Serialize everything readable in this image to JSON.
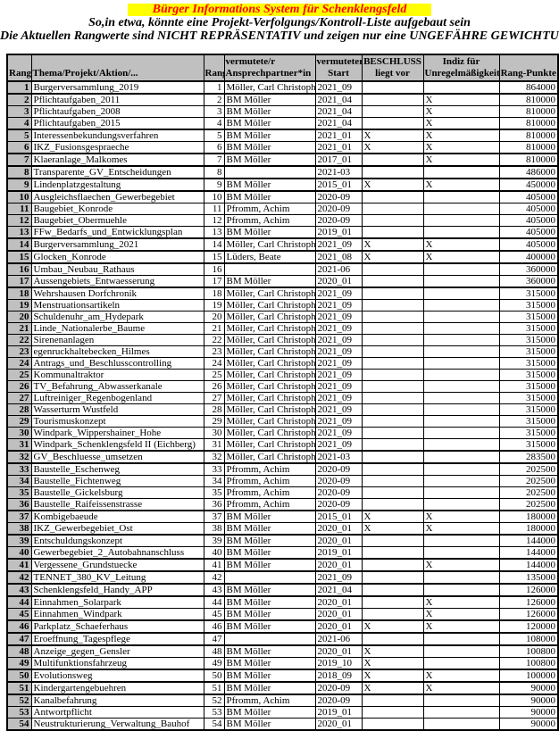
{
  "page": {
    "title": "Bürger Informations System für Schenklengsfeld",
    "subtitle1": "So,in etwa, könnte eine Projekt-Verfolgungs/Kontroll-Liste aufgebaut sein",
    "subtitle2": "Die Aktuellen Rangwerte sind NICHT REPRÄSENTATIV und zeigen nur eine UNGEFÄHRE GEWICHTUNG",
    "colors": {
      "title_highlight_bg": "#ffff00",
      "title_text": "#ff0000",
      "header_bg": "#c0c0c0",
      "border": "#000000"
    }
  },
  "table": {
    "headers": [
      "Rang",
      "Thema/Projekt/Aktion/...",
      "Rang",
      "vermutete/r\nAnsprechpartner*in",
      "vermuteter\nStart",
      "BESCHLUSS\nliegt vor",
      "Indiz für\nUnregelmäßigkeit",
      "Rang-Punkte"
    ],
    "rows": [
      [
        "1",
        "Burgerversammlung_2019",
        "1",
        "Möller, Carl Christoph",
        "2021_09",
        "",
        "",
        "864000"
      ],
      [
        "2",
        "Pflichtaufgaben_2011",
        "2",
        "BM Möller",
        "2021_04",
        "",
        "X",
        "810000"
      ],
      [
        "3",
        "Pflichtaufgaben_2008",
        "3",
        "BM Möller",
        "2021_04",
        "",
        "X",
        "810000"
      ],
      [
        "4",
        "Pflichtaufgaben_2015",
        "4",
        "BM Möller",
        "2021_04",
        "",
        "X",
        "810000"
      ],
      [
        "5",
        "Interessenbekundungsverfahren",
        "5",
        "BM Möller",
        "2021_01",
        "X",
        "X",
        "810000"
      ],
      [
        "6",
        "IKZ_Fusionsgespraeche",
        "6",
        "BM Möller",
        "2021_01",
        "X",
        "X",
        "810000"
      ],
      [
        "7",
        "Klaeranlage_Malkomes",
        "7",
        "BM Möller",
        "2017_01",
        "",
        "X",
        "810000"
      ],
      [
        "8",
        "Transparente_GV_Entscheidungen",
        "8",
        "",
        "2021-03",
        "",
        "",
        "486000"
      ],
      [
        "9",
        "Lindenplatzgestaltung",
        "9",
        "BM Möller",
        "2015_01",
        "X",
        "X",
        "450000"
      ],
      [
        "10",
        "Ausgleichsflaechen_Gewerbegebiet",
        "10",
        "BM Möller",
        "2020-09",
        "",
        "",
        "405000"
      ],
      [
        "11",
        "Baugebiet_Konrode",
        "11",
        "Pfromm, Achim",
        "2020-09",
        "",
        "",
        "405000"
      ],
      [
        "12",
        "Baugebiet_Obermuehle",
        "12",
        "Pfromm, Achim",
        "2020-09",
        "",
        "",
        "405000"
      ],
      [
        "13",
        "FFw_Bedarfs_und_Entwicklungsplan",
        "13",
        "BM Möller",
        "2019_01",
        "",
        "",
        "405000"
      ],
      [
        "14",
        "Burgerversammlung_2021",
        "14",
        "Möller, Carl Christoph",
        "2021_09",
        "X",
        "X",
        "405000"
      ],
      [
        "15",
        "Glocken_Konrode",
        "15",
        "Lüders, Beate",
        "2021_08",
        "X",
        "X",
        "400000"
      ],
      [
        "16",
        "Umbau_Neubau_Rathaus",
        "16",
        "",
        "2021-06",
        "",
        "",
        "360000"
      ],
      [
        "17",
        "Aussengebiets_Entwaesserung",
        "17",
        "BM Möller",
        "2020_01",
        "",
        "",
        "360000"
      ],
      [
        "18",
        "Wehrshausen Dorfchronik",
        "18",
        "Möller, Carl Christoph",
        "2021_09",
        "",
        "",
        "315000"
      ],
      [
        "19",
        "Menstruationsartikeln",
        "19",
        "Möller, Carl Christoph",
        "2021_09",
        "",
        "",
        "315000"
      ],
      [
        "20",
        "Schuldenuhr_am_Hydepark",
        "20",
        "Möller, Carl Christoph",
        "2021_09",
        "",
        "",
        "315000"
      ],
      [
        "21",
        "Linde_Nationalerbe_Baume",
        "21",
        "Möller, Carl Christoph",
        "2021_09",
        "",
        "",
        "315000"
      ],
      [
        "22",
        "Sirenenanlagen",
        "22",
        "Möller, Carl Christoph",
        "2021_09",
        "",
        "",
        "315000"
      ],
      [
        "23",
        "egenruckhaltebecken_Hilmes",
        "23",
        "Möller, Carl Christoph",
        "2021_09",
        "",
        "",
        "315000"
      ],
      [
        "24",
        "Antrags_und_Beschlusscontrolling",
        "24",
        "Möller, Carl Christoph",
        "2021_09",
        "",
        "",
        "315000"
      ],
      [
        "25",
        "Kommunaltraktor",
        "25",
        "Möller, Carl Christoph",
        "2021_09",
        "",
        "",
        "315000"
      ],
      [
        "26",
        "TV_Befahrung_Abwasserkanale",
        "26",
        "Möller, Carl Christoph",
        "2021_09",
        "",
        "",
        "315000"
      ],
      [
        "27",
        "Luftreiniger_Regenbogenland",
        "27",
        "Möller, Carl Christoph",
        "2021_09",
        "",
        "",
        "315000"
      ],
      [
        "28",
        "Wasserturm Wustfeld",
        "28",
        "Möller, Carl Christoph",
        "2021_09",
        "",
        "",
        "315000"
      ],
      [
        "29",
        "Tourismuskonzept",
        "29",
        "Möller, Carl Christoph",
        "2021_09",
        "",
        "",
        "315000"
      ],
      [
        "30",
        "Windpark_Wippershainer_Hohe",
        "30",
        "Möller, Carl Christoph",
        "2021_09",
        "",
        "",
        "315000"
      ],
      [
        "31",
        "Windpark_Schenklengsfeld II (Eichberg)",
        "31",
        "Möller, Carl Christoph",
        "2021_09",
        "",
        "",
        "315000"
      ],
      [
        "32",
        "GV_Beschluesse_umsetzen",
        "32",
        "Möller, Carl Christoph",
        "2021-03",
        "",
        "",
        "283500"
      ],
      [
        "33",
        "Baustelle_Eschenweg",
        "33",
        "Pfromm, Achim",
        "2020-09",
        "",
        "",
        "202500"
      ],
      [
        "34",
        "Baustelle_Fichtenweg",
        "34",
        "Pfromm, Achim",
        "2020-09",
        "",
        "",
        "202500"
      ],
      [
        "35",
        "Baustelle_Gickelsburg",
        "35",
        "Pfromm, Achim",
        "2020-09",
        "",
        "",
        "202500"
      ],
      [
        "36",
        "Baustelle_Raifeissenstrasse",
        "36",
        "Pfromm, Achim",
        "2020-09",
        "",
        "",
        "202500"
      ],
      [
        "37",
        "Kombigebaeude",
        "37",
        "BM Möller",
        "2015_01",
        "X",
        "X",
        "180000"
      ],
      [
        "38",
        "IKZ_Gewerbegebiet_Ost",
        "38",
        "BM Möller",
        "2020_01",
        "X",
        "X",
        "180000"
      ],
      [
        "39",
        "Entschuldungskonzept",
        "39",
        "BM Möller",
        "2020_01",
        "",
        "",
        "144000"
      ],
      [
        "40",
        "Gewerbegebiet_2_Autobahnanschluss",
        "40",
        "BM Möller",
        "2019_01",
        "",
        "",
        "144000"
      ],
      [
        "41",
        "Vergessene_Grundstuecke",
        "41",
        "BM Möller",
        "2020_01",
        "",
        "X",
        "144000"
      ],
      [
        "42",
        "TENNET_380_KV_Leitung",
        "42",
        "",
        "2021_09",
        "",
        "",
        "135000"
      ],
      [
        "43",
        "Schenklengsfeld_Handy_APP",
        "43",
        "BM Möller",
        "2021_04",
        "",
        "",
        "126000"
      ],
      [
        "44",
        "Einnahmen_Solarpark",
        "44",
        "BM Möller",
        "2020_01",
        "",
        "X",
        "126000"
      ],
      [
        "45",
        "Einnahmen_Windpark",
        "45",
        "BM Möller",
        "2020_01",
        "",
        "X",
        "126000"
      ],
      [
        "46",
        "Parkplatz_Schaeferhaus",
        "46",
        "BM Möller",
        "2020_01",
        "X",
        "X",
        "120000"
      ],
      [
        "47",
        "Eroeffnung_Tagespflege",
        "47",
        "",
        "2021-06",
        "",
        "",
        "108000"
      ],
      [
        "48",
        "Anzeige_gegen_Gensler",
        "48",
        "BM Möller",
        "2020_01",
        "X",
        "",
        "100800"
      ],
      [
        "49",
        "Multifunktionsfahrzeug",
        "49",
        "BM Möller",
        "2019_10",
        "X",
        "",
        "100800"
      ],
      [
        "50",
        "Evolutionsweg",
        "50",
        "BM Möller",
        "2018_09",
        "X",
        "X",
        "100000"
      ],
      [
        "51",
        "Kindergartengebuehren",
        "51",
        "BM Möller",
        "2020-09",
        "X",
        "X",
        "90000"
      ],
      [
        "52",
        "Kanalbefahrung",
        "52",
        "Pfromm, Achim",
        "2020-09",
        "",
        "",
        "90000"
      ],
      [
        "53",
        "Antwortpflicht",
        "53",
        "BM Möller",
        "2019_01",
        "",
        "",
        "90000"
      ],
      [
        "54",
        "Neustrukturierung_Verwaltung_Bauhof",
        "54",
        "BM Möller",
        "2020_01",
        "",
        "",
        "90000"
      ]
    ]
  }
}
